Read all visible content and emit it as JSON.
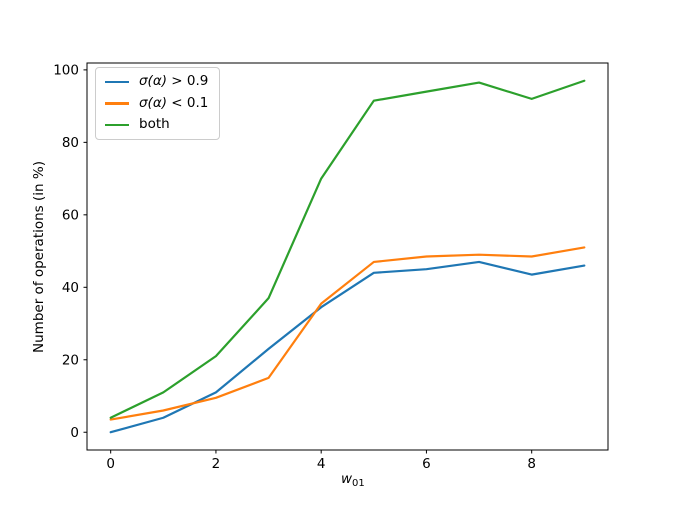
{
  "figure": {
    "background_color": "#ffffff",
    "axis_color": "#000000",
    "legend_border_color": "#cccccc"
  },
  "chart_data": {
    "type": "line",
    "title": "",
    "x": [
      0,
      1,
      2,
      3,
      4,
      5,
      6,
      7,
      8,
      9
    ],
    "series": [
      {
        "id": "sigma-gt-09",
        "label": "σ(α) > 0.9",
        "label_math": "σ(α)",
        "label_rest": " > 0.9",
        "color": "#1f77b4",
        "values": [
          0,
          4,
          11,
          23,
          34.5,
          44,
          45,
          47,
          43.5,
          46
        ]
      },
      {
        "id": "sigma-lt-01",
        "label": "σ(α) < 0.1",
        "label_math": "σ(α)",
        "label_rest": " < 0.1",
        "color": "#ff7f0e",
        "values": [
          3.5,
          6,
          9.5,
          15,
          35.5,
          47,
          48.5,
          49,
          48.5,
          51
        ]
      },
      {
        "id": "both",
        "label": "both",
        "label_math": "",
        "label_rest": "both",
        "color": "#2ca02c",
        "values": [
          4,
          11,
          21,
          37,
          70,
          91.5,
          94,
          96.5,
          92,
          97
        ]
      }
    ],
    "xlabel_base": "w",
    "xlabel_sub": "01",
    "ylabel": "Number of operations (in %)",
    "xticks": [
      0,
      2,
      4,
      6,
      8
    ],
    "yticks": [
      0,
      20,
      40,
      60,
      80,
      100
    ],
    "xlim": [
      -0.45,
      9.45
    ],
    "ylim": [
      -4.9,
      101.9
    ],
    "grid": false,
    "legend_position": "upper-left"
  }
}
